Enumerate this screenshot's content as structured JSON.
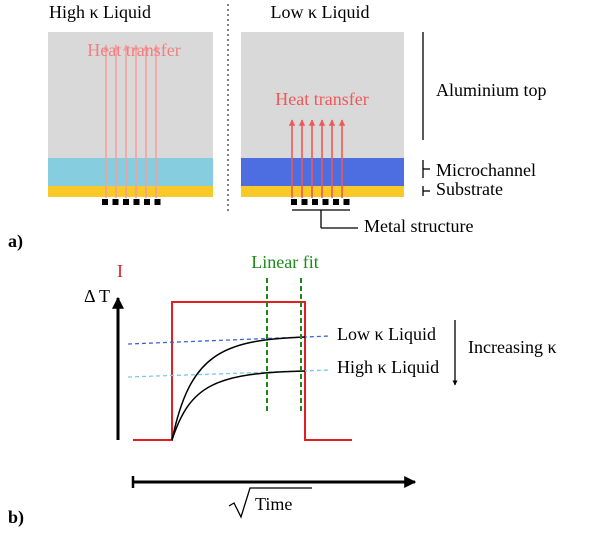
{
  "panel_a": {
    "label": "a)",
    "left_title": "High κ Liquid",
    "right_title": "Low κ Liquid",
    "left_arrow_label": "Heat transfer",
    "right_arrow_label": "Heat transfer",
    "layers": [
      "Aluminium top",
      "Microchannel",
      "Substrate"
    ],
    "metal_label": "Metal structure"
  },
  "panel_b": {
    "label": "b)",
    "current_label": "I",
    "temp_label": "Δ T",
    "fit_label": "Linear fit",
    "curves": [
      "Low κ Liquid",
      "High κ Liquid"
    ],
    "trend_label": "Increasing κ",
    "x_label": "Time"
  }
}
